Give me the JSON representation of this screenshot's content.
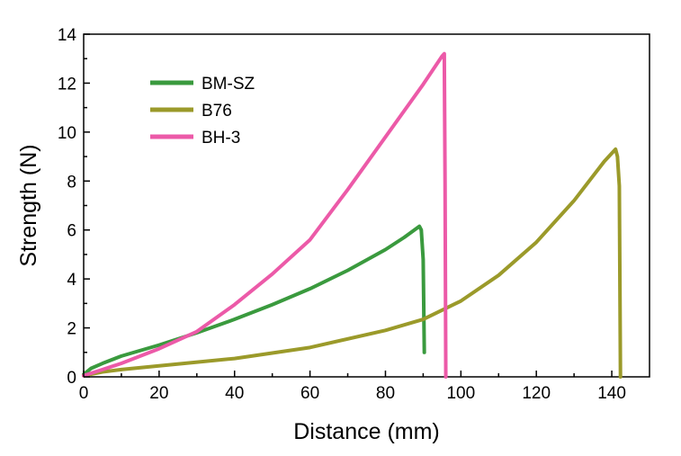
{
  "chart_data": {
    "type": "line",
    "title": "",
    "xlabel": "Distance (mm)",
    "ylabel": "Strength (N)",
    "xlim": [
      0,
      150
    ],
    "ylim": [
      0,
      14
    ],
    "x_ticks": [
      0,
      20,
      40,
      60,
      80,
      100,
      120,
      140
    ],
    "y_ticks": [
      0,
      2,
      4,
      6,
      8,
      10,
      12,
      14
    ],
    "grid": false,
    "legend_position": "top-left",
    "series": [
      {
        "name": "BM-SZ",
        "color": "#3a9a3e",
        "x": [
          0,
          2,
          5,
          10,
          20,
          30,
          40,
          50,
          60,
          70,
          80,
          85,
          89,
          89.5,
          90,
          90.3
        ],
        "y": [
          0.1,
          0.35,
          0.55,
          0.85,
          1.3,
          1.8,
          2.35,
          2.95,
          3.6,
          4.35,
          5.2,
          5.7,
          6.15,
          6.0,
          4.8,
          1.0
        ]
      },
      {
        "name": "B76",
        "color": "#9b9a2a",
        "x": [
          0,
          5,
          10,
          20,
          40,
          60,
          80,
          90,
          100,
          110,
          120,
          130,
          138,
          141,
          141.5,
          142,
          142.3
        ],
        "y": [
          0.05,
          0.2,
          0.3,
          0.45,
          0.75,
          1.2,
          1.9,
          2.35,
          3.1,
          4.15,
          5.5,
          7.2,
          8.8,
          9.3,
          9.0,
          7.8,
          0.0
        ]
      },
      {
        "name": "BH-3",
        "color": "#ec5aa8",
        "x": [
          0,
          5,
          10,
          20,
          30,
          40,
          50,
          60,
          70,
          80,
          90,
          95,
          95.6,
          95.8,
          96
        ],
        "y": [
          0.05,
          0.3,
          0.55,
          1.15,
          1.85,
          2.95,
          4.2,
          5.6,
          7.65,
          9.8,
          11.95,
          13.1,
          13.2,
          8.0,
          0.0
        ]
      }
    ]
  }
}
